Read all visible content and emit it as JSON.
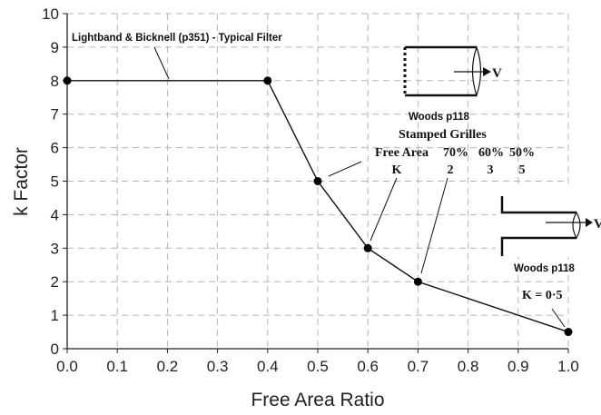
{
  "chart_data": {
    "type": "line",
    "title": "",
    "xlabel": "Free Area Ratio",
    "ylabel": "k Factor",
    "xlim": [
      0.0,
      1.0
    ],
    "ylim": [
      0,
      10
    ],
    "grid": true,
    "x_ticks": [
      "0.0",
      "0.1",
      "0.2",
      "0.3",
      "0.4",
      "0.5",
      "0.6",
      "0.7",
      "0.8",
      "0.9",
      "1.0"
    ],
    "y_ticks": [
      "0",
      "1",
      "2",
      "3",
      "4",
      "5",
      "6",
      "7",
      "8",
      "9",
      "10"
    ],
    "series": [
      {
        "x": [
          0.0,
          0.4,
          0.5,
          0.6,
          0.7,
          1.0
        ],
        "y": [
          8,
          8,
          5,
          3,
          2,
          0.5
        ]
      }
    ],
    "annotations": {
      "lightband": "Lightband & Bicknell (p351) - Typical Filter",
      "woods_top": "Woods p118",
      "stamped_title": "Stamped Grilles",
      "free_area_label": "Free Area",
      "free_area_values": [
        "70%",
        "60%",
        "50%"
      ],
      "k_label": "K",
      "k_values": [
        "2",
        "3",
        "5"
      ],
      "woods_right": "Woods p118",
      "k_half": "K = 0·5",
      "velocity_symbol": "V"
    }
  }
}
